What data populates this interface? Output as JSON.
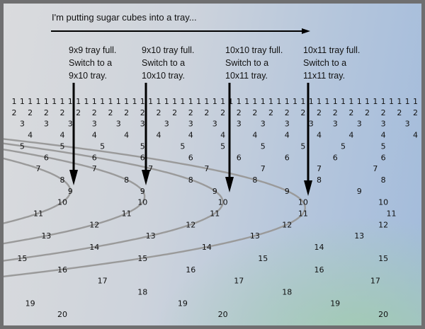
{
  "intro": "I'm putting sugar cubes into a tray...",
  "annotations": [
    {
      "lines": [
        "9x9 tray full.",
        "Switch to a",
        "9x10 tray."
      ],
      "full_tray": [
        9,
        9
      ]
    },
    {
      "lines": [
        "9x10 tray full.",
        "Switch to a",
        "10x10 tray."
      ],
      "full_tray": [
        9,
        10
      ]
    },
    {
      "lines": [
        "10x10 tray full.",
        "Switch to a",
        "10x11 tray."
      ],
      "full_tray": [
        10,
        10
      ]
    },
    {
      "lines": [
        "10x11 tray full.",
        "Switch to a",
        "11x11 tray."
      ],
      "full_tray": [
        10,
        11
      ]
    }
  ],
  "grid": {
    "cube_count_from": 74,
    "cube_count_to": 124,
    "divisor_max": 20,
    "rule": "divisor d shown in the column of every cube count it divides"
  },
  "colors": {
    "arrow": "#000000",
    "curve": "#9a9a9a",
    "frame": "#6f6f70"
  }
}
